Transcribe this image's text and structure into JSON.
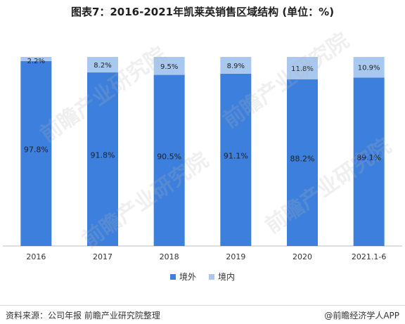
{
  "title": "图表7：2016-2021年凯莱英销售区域结构 (单位：%)",
  "colors": {
    "domestic": "#a9c8f0",
    "overseas": "#3c7fdc",
    "axis": "#bfbfbf"
  },
  "chart_data": {
    "type": "bar",
    "stacked": true,
    "categories": [
      "2016",
      "2017",
      "2018",
      "2019",
      "2020",
      "2021.1-6"
    ],
    "series": [
      {
        "name": "境外",
        "values": [
          97.8,
          91.8,
          90.5,
          91.1,
          88.2,
          89.1
        ],
        "labels": [
          "97.8%",
          "91.8%",
          "90.5%",
          "91.1%",
          "88.2%",
          "89.1%"
        ]
      },
      {
        "name": "境内",
        "values": [
          2.2,
          8.2,
          9.5,
          8.9,
          11.8,
          10.9
        ],
        "labels": [
          "2.2%",
          "8.2%",
          "9.5%",
          "8.9%",
          "11.8%",
          "10.9%"
        ]
      }
    ],
    "ylim": [
      0,
      100
    ],
    "legend_position": "bottom-center",
    "grid": false
  },
  "legend": {
    "overseas": "境外",
    "domestic": "境内"
  },
  "watermark": {
    "text": "前瞻产业研究院"
  },
  "footer": {
    "source": "资料来源：公司年报 前瞻产业研究院整理",
    "brand": "@前瞻经济学人APP"
  }
}
